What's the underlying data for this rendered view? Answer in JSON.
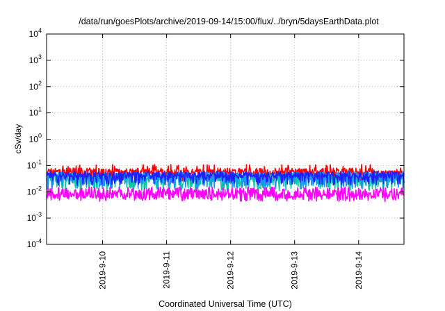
{
  "chart_data": {
    "type": "line",
    "title": "/data/run/goesPlots/archive/2019-09-14/15:00/flux/../bryn/5daysEarthData.plot",
    "xlabel": "Coordinated Universal Time (UTC)",
    "ylabel": "cSv/day",
    "yscale": "log",
    "ylim": [
      0.0001,
      10000
    ],
    "xlim": [
      "2019-09-09 03:00",
      "2019-09-14 17:00"
    ],
    "grid": true,
    "x_ticks": [
      {
        "label": "2019-9-10",
        "value": "2019-09-10"
      },
      {
        "label": "2019-9-11",
        "value": "2019-09-11"
      },
      {
        "label": "2019-9-12",
        "value": "2019-09-12"
      },
      {
        "label": "2019-9-13",
        "value": "2019-09-13"
      },
      {
        "label": "2019-9-14",
        "value": "2019-09-14"
      }
    ],
    "y_ticks": [
      {
        "base": "10",
        "exp": "-4",
        "value": 0.0001
      },
      {
        "base": "10",
        "exp": "-3",
        "value": 0.001
      },
      {
        "base": "10",
        "exp": "-2",
        "value": 0.01
      },
      {
        "base": "10",
        "exp": "-1",
        "value": 0.1
      },
      {
        "base": "10",
        "exp": "0",
        "value": 1
      },
      {
        "base": "10",
        "exp": "1",
        "value": 10
      },
      {
        "base": "10",
        "exp": "2",
        "value": 100
      },
      {
        "base": "10",
        "exp": "3",
        "value": 1000
      },
      {
        "base": "10",
        "exp": "4",
        "value": 10000
      }
    ],
    "series": [
      {
        "color": "#ff0000",
        "level": 0.06,
        "spread": 0.25,
        "low": 0.035
      },
      {
        "color": "#00c8a0",
        "level": 0.035,
        "spread": 0.35,
        "low": 0.015
      },
      {
        "color": "#1e90ff",
        "level": 0.04,
        "spread": 0.3,
        "low": 0.018
      },
      {
        "color": "#2020ff",
        "level": 0.045,
        "spread": 0.25,
        "low": 0.025
      },
      {
        "color": "#ff00ff",
        "level": 0.009,
        "spread": 0.45,
        "low": 0.006
      }
    ]
  }
}
